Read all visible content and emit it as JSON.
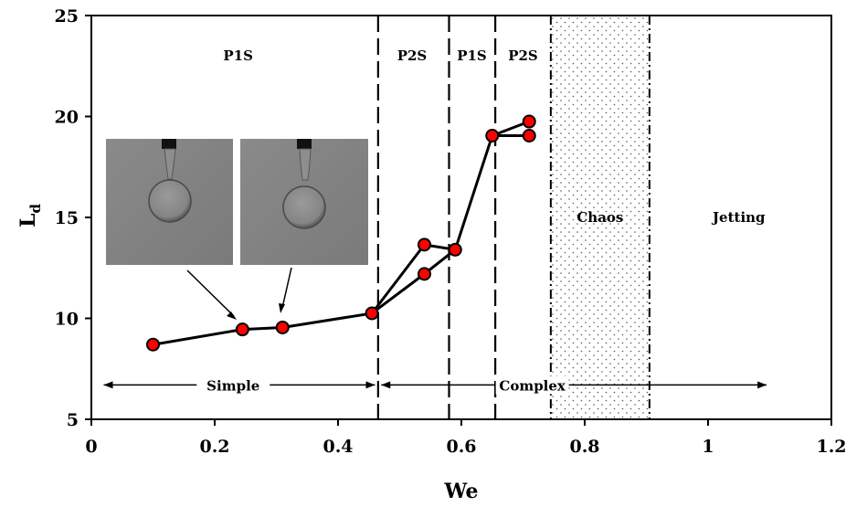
{
  "chart_data": {
    "type": "scatter",
    "title": "",
    "xlabel": "We",
    "ylabel_main": "L",
    "ylabel_sub": "d",
    "xlim": [
      0,
      1.2
    ],
    "ylim": [
      5,
      25
    ],
    "x_ticks": [
      {
        "value": 0,
        "label": "0"
      },
      {
        "value": 0.2,
        "label": "0.2"
      },
      {
        "value": 0.4,
        "label": "0.4"
      },
      {
        "value": 0.6,
        "label": "0.6"
      },
      {
        "value": 0.8,
        "label": "0.8"
      },
      {
        "value": 1.0,
        "label": "1"
      },
      {
        "value": 1.2,
        "label": "1.2"
      }
    ],
    "y_ticks": [
      {
        "value": 5,
        "label": "5"
      },
      {
        "value": 10,
        "label": "10"
      },
      {
        "value": 15,
        "label": "15"
      },
      {
        "value": 20,
        "label": "20"
      },
      {
        "value": 25,
        "label": "25"
      }
    ],
    "grid": false,
    "marker_fill": "#ff0000",
    "marker_edge": "#000000",
    "points": [
      {
        "x": 0.1,
        "y": 8.7
      },
      {
        "x": 0.245,
        "y": 9.45
      },
      {
        "x": 0.31,
        "y": 9.55
      },
      {
        "x": 0.455,
        "y": 10.25
      },
      {
        "x": 0.54,
        "y": 13.65
      },
      {
        "x": 0.54,
        "y": 12.2
      },
      {
        "x": 0.59,
        "y": 13.4
      },
      {
        "x": 0.65,
        "y": 19.05
      },
      {
        "x": 0.71,
        "y": 19.75
      },
      {
        "x": 0.71,
        "y": 19.05
      }
    ],
    "line_paths": [
      [
        [
          0.1,
          8.7
        ],
        [
          0.245,
          9.45
        ],
        [
          0.31,
          9.55
        ],
        [
          0.455,
          10.25
        ],
        [
          0.54,
          13.65
        ],
        [
          0.59,
          13.4
        ],
        [
          0.65,
          19.05
        ],
        [
          0.71,
          19.75
        ]
      ],
      [
        [
          0.455,
          10.25
        ],
        [
          0.54,
          12.2
        ],
        [
          0.59,
          13.4
        ]
      ],
      [
        [
          0.65,
          19.05
        ],
        [
          0.71,
          19.05
        ]
      ]
    ],
    "dashed_vlines": [
      0.465,
      0.58,
      0.655
    ],
    "dashdot_vlines": [
      0.745,
      0.905
    ],
    "chaos_band": [
      0.745,
      0.905
    ],
    "region_labels": [
      {
        "text": "P1S",
        "x": 0.238,
        "y": 23.0
      },
      {
        "text": "P2S",
        "x": 0.52,
        "y": 23.0
      },
      {
        "text": "P1S",
        "x": 0.617,
        "y": 23.0
      },
      {
        "text": "P2S",
        "x": 0.7,
        "y": 23.0
      },
      {
        "text": "Chaos",
        "x": 0.825,
        "y": 15.0
      },
      {
        "text": "Jetting",
        "x": 1.05,
        "y": 15.0
      }
    ],
    "ranges": [
      {
        "label": "Simple",
        "from": 0.02,
        "to": 0.46,
        "y": 6.7,
        "label_x": 0.23
      },
      {
        "label": "Complex",
        "from": 0.47,
        "to": 1.095,
        "y": 6.7,
        "label_x": 0.715
      }
    ]
  }
}
